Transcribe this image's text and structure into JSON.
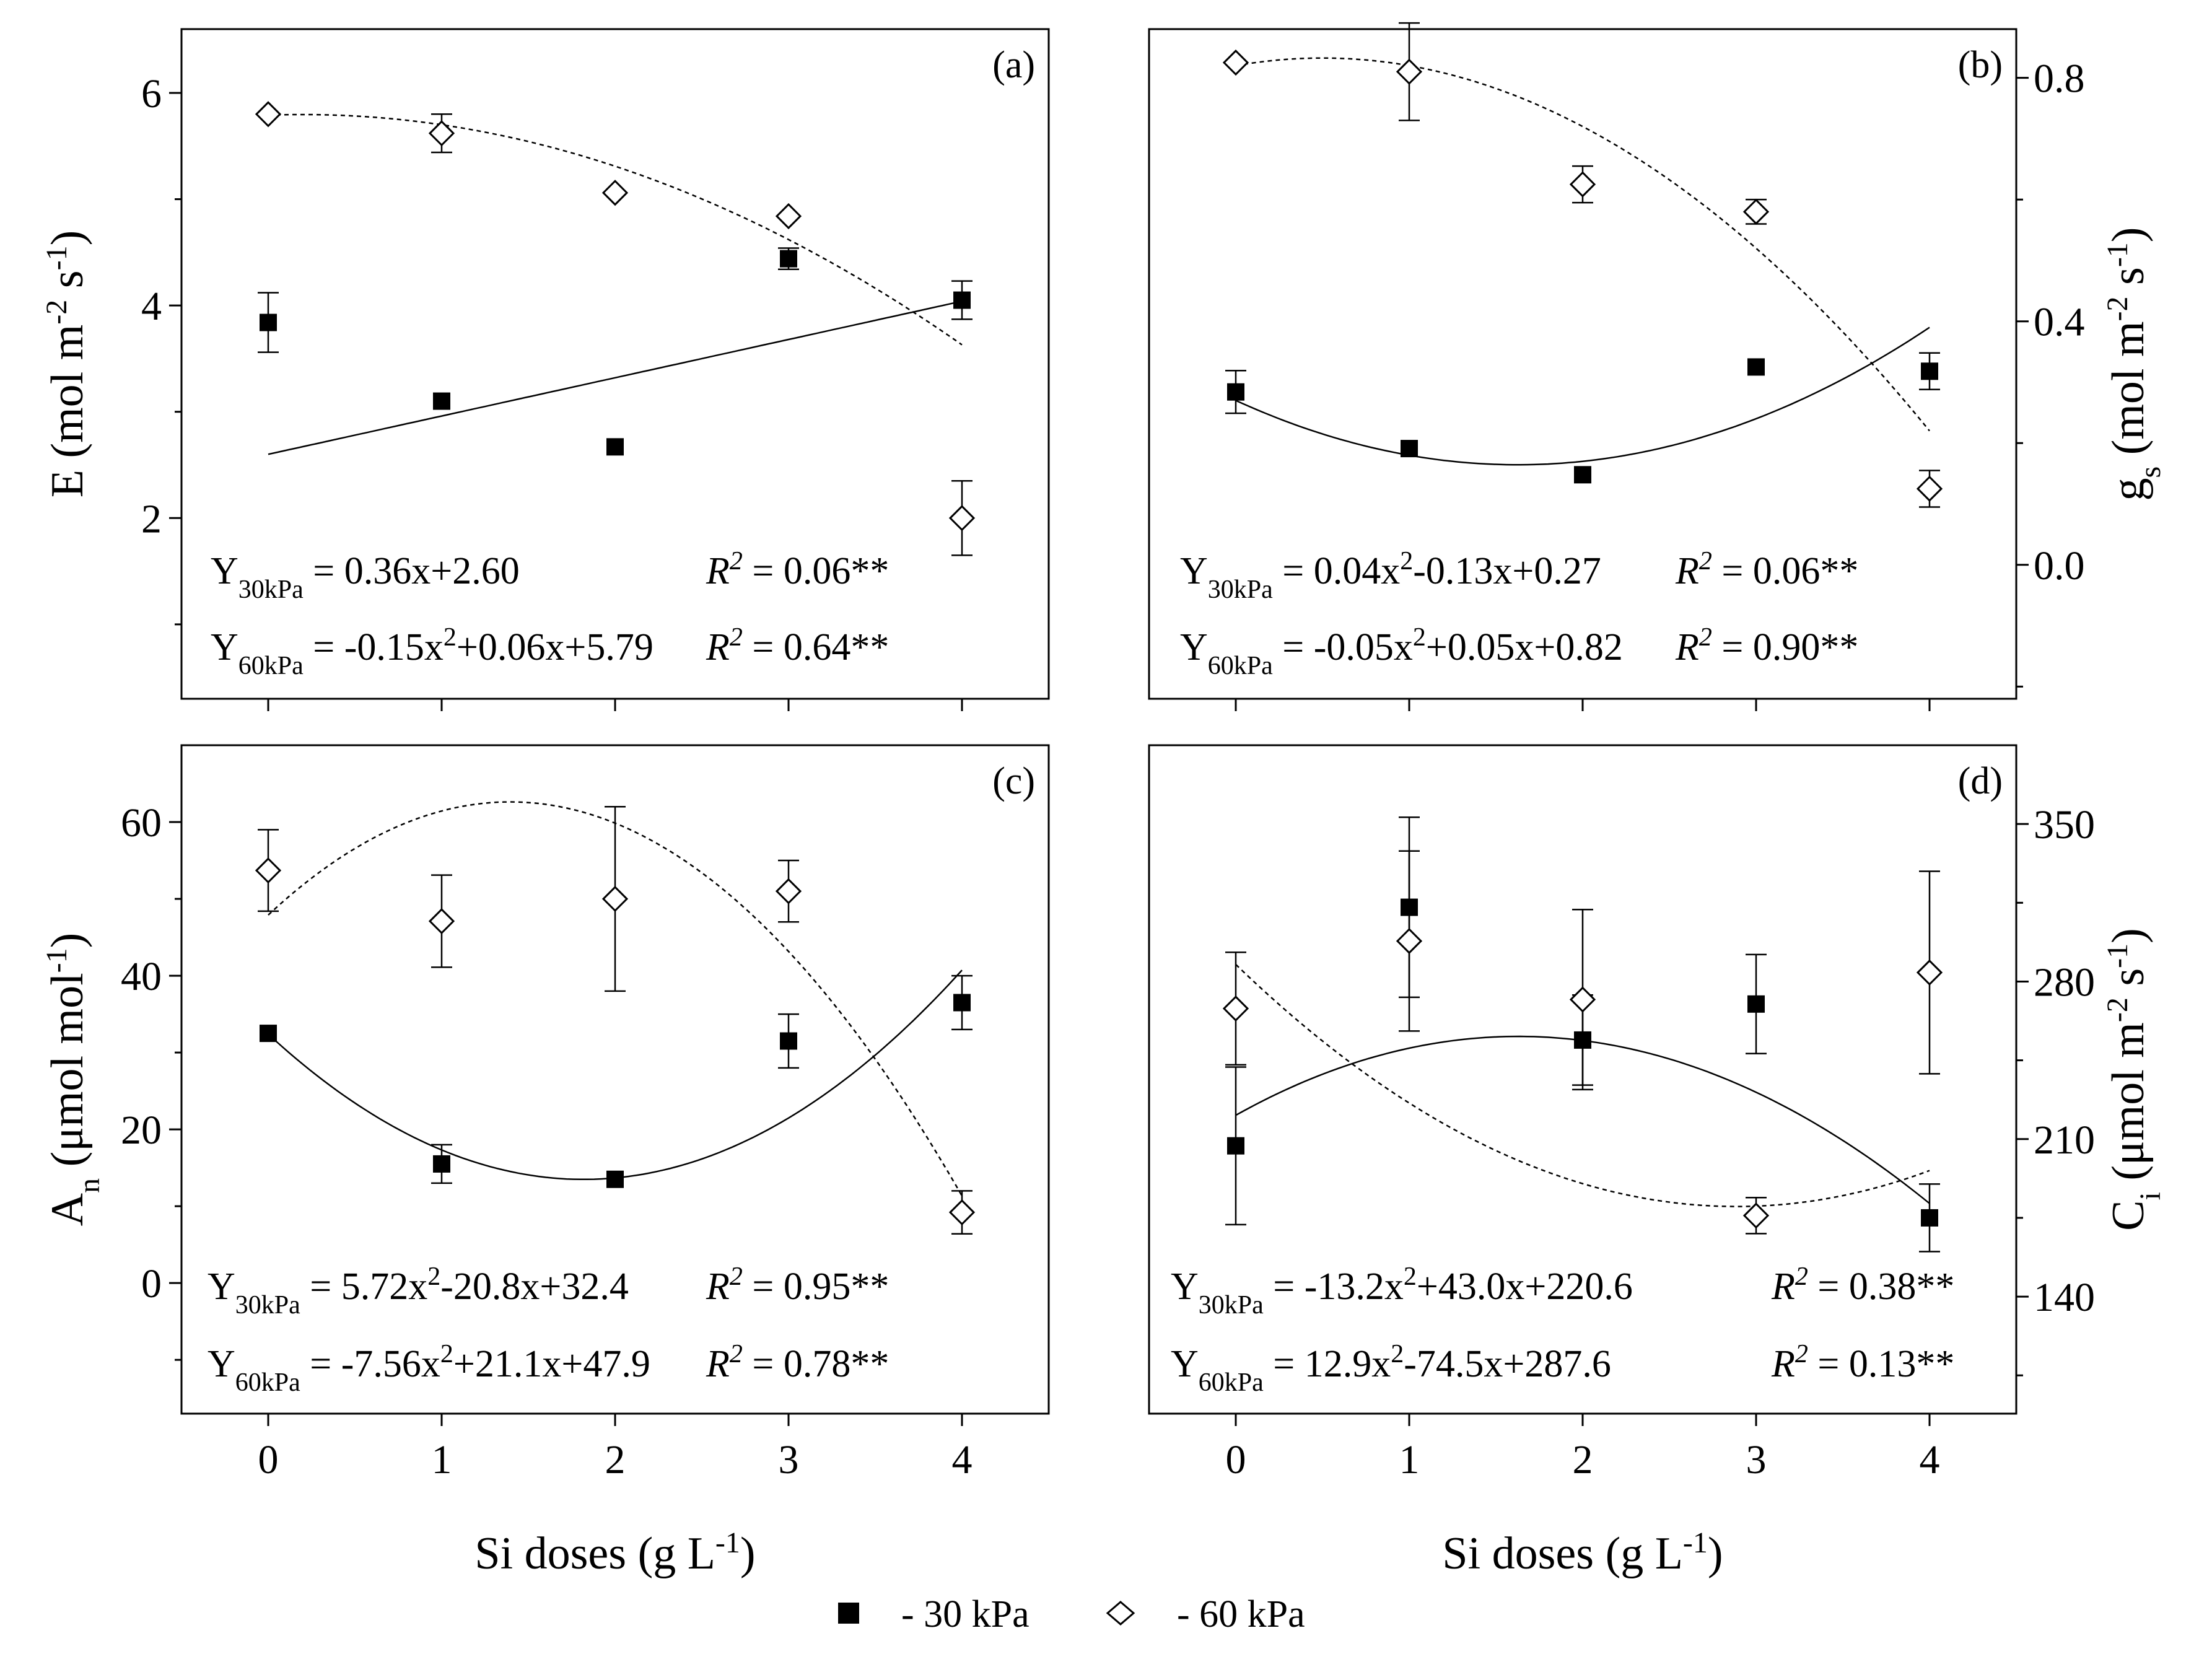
{
  "legend": {
    "s30": "- 30 kPa",
    "s60": "- 60 kPa"
  },
  "chart_data": [
    {
      "type": "scatter",
      "id": "a",
      "panel_label": "(a)",
      "x": [
        0,
        1,
        2,
        3,
        4
      ],
      "xlim": [
        -0.5,
        4.5
      ],
      "ylim": [
        0.3,
        6.6
      ],
      "yticks": [
        2,
        4,
        6
      ],
      "ytick_labels": [
        "2",
        "4",
        "6"
      ],
      "y_axis_side": "left",
      "ylabel": {
        "main": "E (mol m",
        "sup1": "-2",
        "mid": " s",
        "sup2": "-1",
        "end": ")"
      },
      "show_x_ticklabels": false,
      "series": [
        {
          "key": "30kPa",
          "values": [
            3.84,
            3.1,
            2.67,
            4.44,
            4.05
          ],
          "err": [
            0.28,
            0.0,
            0.0,
            0.1,
            0.18
          ]
        },
        {
          "key": "60kPa",
          "values": [
            5.8,
            5.62,
            5.06,
            4.84,
            2.0
          ],
          "err": [
            0.0,
            0.18,
            0.0,
            0.0,
            0.35
          ]
        }
      ],
      "fits": {
        "30kPa": [
          0,
          0.36,
          2.6
        ],
        "60kPa": [
          -0.15,
          0.06,
          5.79
        ]
      },
      "equations": [
        {
          "lhs": "Y",
          "sub": "30kPa",
          "parts": [
            " = 0.36x+2.60"
          ],
          "r2": "= 0.06**"
        },
        {
          "lhs": "Y",
          "sub": "60kPa",
          "parts": [
            " = -0.15x",
            "2",
            "+0.06x+5.79"
          ],
          "r2": "= 0.64**"
        }
      ]
    },
    {
      "type": "scatter",
      "id": "b",
      "panel_label": "(b)",
      "x": [
        0,
        1,
        2,
        3,
        4
      ],
      "xlim": [
        -0.5,
        4.5
      ],
      "ylim": [
        -0.22,
        0.88
      ],
      "yticks": [
        0.0,
        0.4,
        0.8
      ],
      "ytick_labels": [
        "0.0",
        "0.4",
        "0.8"
      ],
      "y_axis_side": "right",
      "ylabel": {
        "main": "g",
        "sub": "s",
        "rest": " (mol m",
        "sup1": "-2",
        "mid": " s",
        "sup2": "-1",
        "end": ")"
      },
      "show_x_ticklabels": false,
      "series": [
        {
          "key": "30kPa",
          "values": [
            0.284,
            0.191,
            0.148,
            0.325,
            0.318
          ],
          "err": [
            0.035,
            0.0,
            0.0,
            0.0,
            0.03
          ]
        },
        {
          "key": "60kPa",
          "values": [
            0.825,
            0.81,
            0.625,
            0.58,
            0.125
          ],
          "err": [
            0.0,
            0.08,
            0.03,
            0.02,
            0.03
          ]
        }
      ],
      "fits": {
        "30kPa": [
          0.04,
          -0.13,
          0.27
        ],
        "60kPa": [
          -0.05,
          0.05,
          0.82
        ]
      },
      "equations": [
        {
          "lhs": "Y",
          "sub": "30kPa",
          "parts": [
            " = 0.04x",
            "2",
            "-0.13x+0.27"
          ],
          "r2": "= 0.06**"
        },
        {
          "lhs": "Y",
          "sub": "60kPa",
          "parts": [
            " = -0.05x",
            "2",
            "+0.05x+0.82"
          ],
          "r2": "= 0.90**"
        }
      ]
    },
    {
      "type": "scatter",
      "id": "c",
      "panel_label": "(c)",
      "x": [
        0,
        1,
        2,
        3,
        4
      ],
      "xlim": [
        -0.5,
        4.5
      ],
      "ylim": [
        -17,
        70
      ],
      "yticks": [
        0,
        20,
        40,
        60
      ],
      "ytick_labels": [
        "0",
        "20",
        "40",
        "60"
      ],
      "y_axis_side": "left",
      "ylabel": {
        "main": "A",
        "sub": "n",
        "rest": " (μmol mol",
        "sup1": "-1",
        "end": ")"
      },
      "show_x_ticklabels": true,
      "xticks": [
        0,
        1,
        2,
        3,
        4
      ],
      "xtick_labels": [
        "0",
        "1",
        "2",
        "3",
        "4"
      ],
      "xlabel": {
        "main": "Si doses (g L",
        "sup": "-1",
        "end": ")"
      },
      "series": [
        {
          "key": "30kPa",
          "values": [
            32.5,
            15.5,
            13.5,
            31.5,
            36.5
          ],
          "err": [
            0.0,
            2.5,
            0.0,
            3.5,
            3.5
          ]
        },
        {
          "key": "60kPa",
          "values": [
            53.7,
            47.1,
            50.0,
            51.0,
            9.2
          ],
          "err": [
            5.3,
            6.0,
            12.0,
            4.0,
            2.8
          ]
        }
      ],
      "fits": {
        "30kPa": [
          5.72,
          -20.8,
          32.4
        ],
        "60kPa": [
          -7.56,
          21.1,
          47.9
        ]
      },
      "equations": [
        {
          "lhs": "Y",
          "sub": "30kPa",
          "parts": [
            " = 5.72x",
            "2",
            "-20.8x+32.4"
          ],
          "r2": "= 0.95**"
        },
        {
          "lhs": "Y",
          "sub": "60kPa",
          "parts": [
            " = -7.56x",
            "2",
            "+21.1x+47.9"
          ],
          "r2": "= 0.78**"
        }
      ]
    },
    {
      "type": "scatter",
      "id": "d",
      "panel_label": "(d)",
      "x": [
        0,
        1,
        2,
        3,
        4
      ],
      "xlim": [
        -0.5,
        4.5
      ],
      "ylim": [
        88,
        385
      ],
      "yticks": [
        140,
        210,
        280,
        350
      ],
      "ytick_labels": [
        "140",
        "210",
        "280",
        "350"
      ],
      "y_axis_side": "right",
      "ylabel": {
        "main": "C",
        "sub": "i",
        "rest": " (μmol m",
        "sup1": "-2",
        "mid": " s",
        "sup2": "-1",
        "end": ")"
      },
      "show_x_ticklabels": true,
      "xticks": [
        0,
        1,
        2,
        3,
        4
      ],
      "xtick_labels": [
        "0",
        "1",
        "2",
        "3",
        "4"
      ],
      "xlabel": {
        "main": "Si doses (g L",
        "sup": "-1",
        "end": ")"
      },
      "series": [
        {
          "key": "30kPa",
          "values": [
            207,
            313,
            254,
            270,
            175
          ],
          "err": [
            35,
            40,
            20,
            22,
            15
          ]
        },
        {
          "key": "60kPa",
          "values": [
            268,
            298,
            272,
            176,
            284
          ],
          "err": [
            25,
            40,
            40,
            8,
            45
          ]
        }
      ],
      "fits": {
        "30kPa": [
          -13.2,
          43.0,
          220.6
        ],
        "60kPa": [
          12.9,
          -74.5,
          287.6
        ]
      },
      "equations": [
        {
          "lhs": "Y",
          "sub": "30kPa",
          "parts": [
            " = -13.2x",
            "2",
            "+43.0x+220.6"
          ],
          "r2": "= 0.38**"
        },
        {
          "lhs": "Y",
          "sub": "60kPa",
          "parts": [
            " =  12.9x",
            "2",
            "-74.5x+287.6"
          ],
          "r2": "= 0.13**"
        }
      ]
    }
  ]
}
